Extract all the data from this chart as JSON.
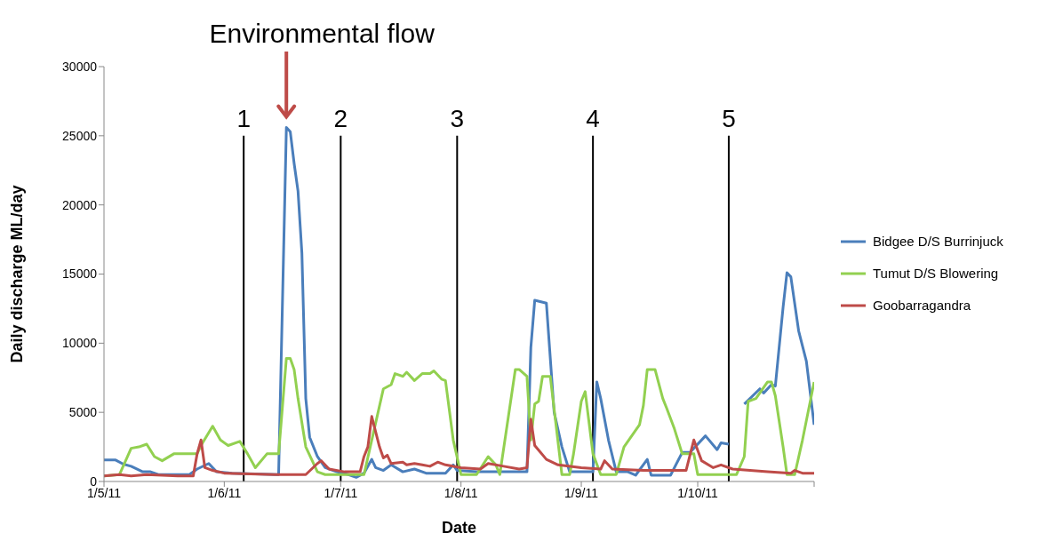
{
  "chart_data": {
    "type": "line",
    "xlabel": "Date",
    "ylabel": "Daily discharge ML/day",
    "annotations": [
      {
        "text": "Environmental flow",
        "x": "2011-06-17",
        "y": 25600
      }
    ],
    "xlim": [
      "2011-05-01",
      "2011-10-31"
    ],
    "xticks": [
      {
        "value": "2011-05-01",
        "label": "1/5/11"
      },
      {
        "value": "2011-06-01",
        "label": "1/6/11"
      },
      {
        "value": "2011-07-01",
        "label": "1/7/11"
      },
      {
        "value": "2011-08-01",
        "label": "1/8/11"
      },
      {
        "value": "2011-09-01",
        "label": "1/9/11"
      },
      {
        "value": "2011-10-01",
        "label": "1/10/11"
      },
      {
        "value": "2011-10-31",
        "label": null
      }
    ],
    "ylim": [
      0,
      30000
    ],
    "yticks": [
      0,
      5000,
      10000,
      15000,
      20000,
      25000,
      30000
    ],
    "grid": false,
    "legend": "right",
    "marker": "none",
    "line_style": "solid",
    "ref_lines": [
      {
        "axis": "x",
        "value": "2011-06-06",
        "label": "1",
        "color": "#000000"
      },
      {
        "axis": "x",
        "value": "2011-07-01",
        "label": "2",
        "color": "#000000"
      },
      {
        "axis": "x",
        "value": "2011-07-31",
        "label": "3",
        "color": "#000000"
      },
      {
        "axis": "x",
        "value": "2011-09-04",
        "label": "4",
        "color": "#000000"
      },
      {
        "axis": "x",
        "value": "2011-10-09",
        "label": "5",
        "color": "#000000"
      }
    ],
    "series": [
      {
        "name": "Bidgee D/S Burrinjuck",
        "color": "#4a7ebb",
        "x": [
          "2011-05-01",
          "2011-05-04",
          "2011-05-06",
          "2011-05-08",
          "2011-05-11",
          "2011-05-13",
          "2011-05-15",
          "2011-05-23",
          "2011-05-25",
          "2011-05-28",
          "2011-05-30",
          "2011-06-03",
          "2011-06-15",
          "2011-06-17",
          "2011-06-18",
          "2011-06-19",
          "2011-06-20",
          "2011-06-21",
          "2011-06-22",
          "2011-06-23",
          "2011-06-25",
          "2011-06-27",
          "2011-06-30",
          "2011-07-03",
          "2011-07-05",
          "2011-07-07",
          "2011-07-09",
          "2011-07-10",
          "2011-07-12",
          "2011-07-14",
          "2011-07-17",
          "2011-07-20",
          "2011-07-23",
          "2011-07-28",
          "2011-07-30",
          "2011-07-31",
          "2011-08-05",
          "2011-08-18",
          "2011-08-19",
          "2011-08-20",
          "2011-08-23",
          "2011-08-25",
          "2011-08-27",
          "2011-08-29",
          "2011-09-04",
          "2011-09-05",
          "2011-09-06",
          "2011-09-08",
          "2011-09-10",
          "2011-09-13",
          "2011-09-15",
          "2011-09-18",
          "2011-09-19",
          "2011-09-24",
          "2011-09-27",
          "2011-09-29",
          "2011-10-03",
          "2011-10-06",
          "2011-10-07",
          "2011-10-09",
          "2011-10-11",
          "2011-10-13",
          "2011-10-17",
          "2011-10-18",
          "2011-10-20",
          "2011-10-21",
          "2011-10-23",
          "2011-10-24",
          "2011-10-25",
          "2011-10-27",
          "2011-10-29",
          "2011-10-31"
        ],
        "values": [
          1550,
          1550,
          1250,
          1100,
          700,
          700,
          500,
          500,
          900,
          1300,
          700,
          600,
          500,
          25600,
          25300,
          23000,
          21000,
          16500,
          6000,
          3200,
          1800,
          1000,
          700,
          500,
          300,
          600,
          1600,
          1000,
          800,
          1200,
          700,
          900,
          600,
          600,
          1200,
          800,
          700,
          700,
          9700,
          13100,
          12900,
          5000,
          2500,
          700,
          700,
          7200,
          6000,
          3000,
          700,
          700,
          450,
          1600,
          450,
          450,
          2100,
          2100,
          3300,
          2300,
          2800,
          2700,
          null,
          5600,
          6700,
          6400,
          7000,
          6900,
          12600,
          15100,
          14800,
          10900,
          8700,
          4100
        ]
      },
      {
        "name": "Tumut D/S Blowering",
        "color": "#92d050",
        "x": [
          "2011-05-01",
          "2011-05-05",
          "2011-05-08",
          "2011-05-10",
          "2011-05-12",
          "2011-05-14",
          "2011-05-16",
          "2011-05-19",
          "2011-05-25",
          "2011-05-26",
          "2011-05-29",
          "2011-05-31",
          "2011-06-02",
          "2011-06-05",
          "2011-06-07",
          "2011-06-09",
          "2011-06-12",
          "2011-06-15",
          "2011-06-17",
          "2011-06-18",
          "2011-06-19",
          "2011-06-20",
          "2011-06-22",
          "2011-06-25",
          "2011-06-27",
          "2011-07-07",
          "2011-07-12",
          "2011-07-14",
          "2011-07-15",
          "2011-07-17",
          "2011-07-18",
          "2011-07-20",
          "2011-07-22",
          "2011-07-24",
          "2011-07-25",
          "2011-07-27",
          "2011-07-28",
          "2011-07-30",
          "2011-08-01",
          "2011-08-05",
          "2011-08-08",
          "2011-08-10",
          "2011-08-11",
          "2011-08-15",
          "2011-08-16",
          "2011-08-18",
          "2011-08-19",
          "2011-08-20",
          "2011-08-21",
          "2011-08-22",
          "2011-08-24",
          "2011-08-27",
          "2011-08-29",
          "2011-08-30",
          "2011-09-01",
          "2011-09-02",
          "2011-09-04",
          "2011-09-06",
          "2011-09-10",
          "2011-09-12",
          "2011-09-14",
          "2011-09-16",
          "2011-09-17",
          "2011-09-18",
          "2011-09-20",
          "2011-09-22",
          "2011-09-23",
          "2011-09-25",
          "2011-09-27",
          "2011-09-30",
          "2011-10-01",
          "2011-10-11",
          "2011-10-13",
          "2011-10-14",
          "2011-10-16",
          "2011-10-19",
          "2011-10-20",
          "2011-10-21",
          "2011-10-23",
          "2011-10-24",
          "2011-10-26",
          "2011-10-28",
          "2011-10-31"
        ],
        "values": [
          400,
          500,
          2400,
          2500,
          2700,
          1800,
          1500,
          2000,
          2000,
          2600,
          4000,
          3000,
          2600,
          2900,
          2000,
          1000,
          2000,
          2000,
          8900,
          8900,
          8100,
          6000,
          2500,
          700,
          500,
          500,
          6700,
          7000,
          7800,
          7600,
          7900,
          7300,
          7800,
          7800,
          8000,
          7400,
          7300,
          3000,
          500,
          500,
          1800,
          1200,
          500,
          8100,
          8100,
          7600,
          3000,
          5600,
          5800,
          7600,
          7600,
          500,
          500,
          2000,
          5800,
          6500,
          2000,
          500,
          500,
          2500,
          3300,
          4100,
          5500,
          8100,
          8100,
          6000,
          5300,
          3800,
          2000,
          2000,
          500,
          500,
          1800,
          5800,
          6000,
          7200,
          7200,
          6200,
          2500,
          500,
          500,
          3000,
          7200
        ]
      },
      {
        "name": "Goobarragandra",
        "color": "#be4b48",
        "x": [
          "2011-05-01",
          "2011-05-05",
          "2011-05-08",
          "2011-05-12",
          "2011-05-20",
          "2011-05-24",
          "2011-05-25",
          "2011-05-26",
          "2011-05-27",
          "2011-05-29",
          "2011-06-01",
          "2011-06-14",
          "2011-06-22",
          "2011-06-25",
          "2011-06-26",
          "2011-06-28",
          "2011-07-02",
          "2011-07-06",
          "2011-07-07",
          "2011-07-08",
          "2011-07-09",
          "2011-07-11",
          "2011-07-12",
          "2011-07-13",
          "2011-07-14",
          "2011-07-17",
          "2011-07-18",
          "2011-07-20",
          "2011-07-22",
          "2011-07-24",
          "2011-07-26",
          "2011-07-28",
          "2011-08-01",
          "2011-08-06",
          "2011-08-08",
          "2011-08-12",
          "2011-08-16",
          "2011-08-18",
          "2011-08-19",
          "2011-08-20",
          "2011-08-23",
          "2011-08-26",
          "2011-09-01",
          "2011-09-06",
          "2011-09-07",
          "2011-09-09",
          "2011-09-17",
          "2011-09-26",
          "2011-09-28",
          "2011-09-30",
          "2011-10-02",
          "2011-10-05",
          "2011-10-07",
          "2011-10-10",
          "2011-10-19",
          "2011-10-25",
          "2011-10-26",
          "2011-10-28",
          "2011-10-31"
        ],
        "values": [
          400,
          500,
          400,
          500,
          400,
          400,
          2000,
          3000,
          1000,
          800,
          600,
          500,
          500,
          1300,
          1500,
          900,
          700,
          700,
          1800,
          2500,
          4700,
          2500,
          1700,
          1900,
          1300,
          1400,
          1200,
          1300,
          1200,
          1100,
          1400,
          1200,
          1000,
          900,
          1300,
          1100,
          900,
          1000,
          4500,
          2600,
          1600,
          1200,
          1000,
          900,
          1500,
          900,
          800,
          800,
          800,
          3000,
          1500,
          1000,
          1200,
          900,
          700,
          600,
          800,
          600,
          600
        ]
      }
    ]
  }
}
